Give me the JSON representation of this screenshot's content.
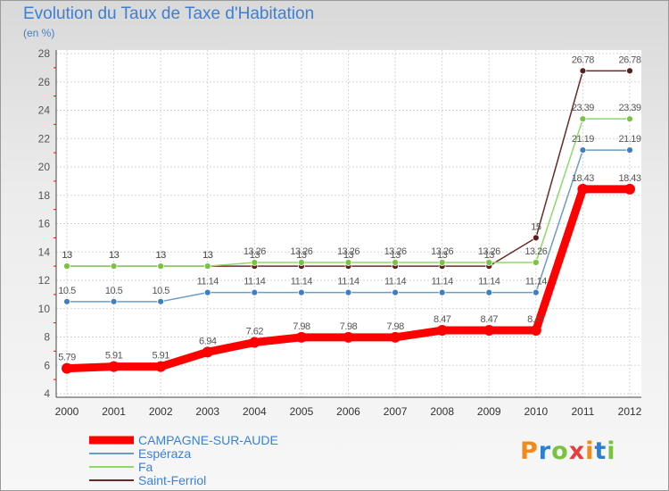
{
  "title": "Evolution du Taux de Taxe d'Habitation",
  "subtitle": "(en %)",
  "logo_text": "Proxiti",
  "chart_data": {
    "type": "line",
    "title": "Evolution du Taux de Taxe d'Habitation",
    "ylabel": "(en %)",
    "xlabel": "",
    "ylim": [
      4,
      28
    ],
    "yticks": [
      4,
      6,
      8,
      10,
      12,
      14,
      16,
      18,
      20,
      22,
      24,
      26,
      28
    ],
    "categories": [
      "2000",
      "2001",
      "2002",
      "2003",
      "2004",
      "2005",
      "2006",
      "2007",
      "2008",
      "2009",
      "2010",
      "2011",
      "2012"
    ],
    "grid": true,
    "legend": "bottom-left",
    "series": [
      {
        "name": "Saint-Ferriol",
        "color": "#6b2a2a",
        "dot": "#5a1f1f",
        "values": [
          13,
          13,
          13,
          13,
          13,
          13,
          13,
          13,
          13,
          13,
          15,
          26.78,
          26.78
        ],
        "labels": [
          "13",
          "13",
          "13",
          "13",
          "13",
          "13",
          "13",
          "13",
          "13",
          "13",
          "15",
          "26.78",
          "26.78"
        ]
      },
      {
        "name": "Fa",
        "color": "#8fd86a",
        "dot": "#7cc242",
        "values": [
          13,
          13,
          13,
          13,
          13.26,
          13.26,
          13.26,
          13.26,
          13.26,
          13.26,
          13.26,
          23.39,
          23.39
        ],
        "labels": [
          "13",
          "13",
          "13",
          "13",
          "13.26",
          "13.26",
          "13.26",
          "13.26",
          "13.26",
          "13.26",
          "13.26",
          "23.39",
          "23.39"
        ]
      },
      {
        "name": "Espéraza",
        "color": "#6a9cc8",
        "dot": "#3f7fc0",
        "values": [
          10.5,
          10.5,
          10.5,
          11.14,
          11.14,
          11.14,
          11.14,
          11.14,
          11.14,
          11.14,
          11.14,
          21.19,
          21.19
        ],
        "labels": [
          "10.5",
          "10.5",
          "10.5",
          "11.14",
          "11.14",
          "11.14",
          "11.14",
          "11.14",
          "11.14",
          "11.14",
          "11.14",
          "21.19",
          "21.19"
        ]
      },
      {
        "name": "CAMPAGNE-SUR-AUDE",
        "color": "#ff0000",
        "dot": "#ff0000",
        "values": [
          5.79,
          5.91,
          5.91,
          6.94,
          7.62,
          7.98,
          7.98,
          7.98,
          8.47,
          8.47,
          8.47,
          18.43,
          18.43
        ],
        "labels": [
          "5.79",
          "5.91",
          "5.91",
          "6.94",
          "7.62",
          "7.98",
          "7.98",
          "7.98",
          "8.47",
          "8.47",
          "8.47",
          "18.43",
          "18.43"
        ]
      }
    ],
    "legend_order": [
      "CAMPAGNE-SUR-AUDE",
      "Espéraza",
      "Fa",
      "Saint-Ferriol"
    ]
  }
}
